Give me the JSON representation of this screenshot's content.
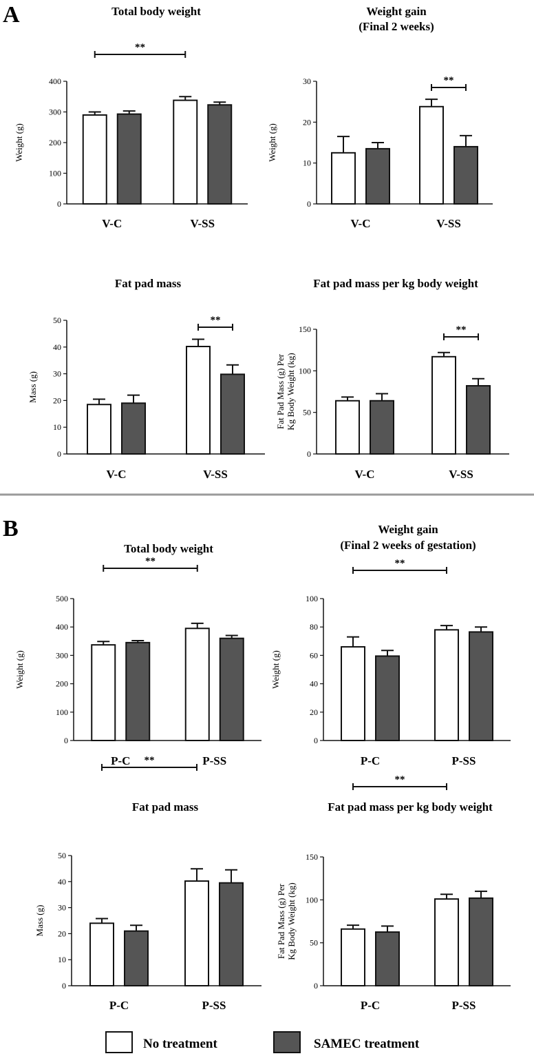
{
  "panels": {
    "a": "A",
    "b": "B"
  },
  "colors": {
    "no_treatment": "#ffffff",
    "samec": "#555555",
    "axis": "#111111",
    "divider": "#9a9a9a"
  },
  "legend": [
    {
      "label": "No treatment",
      "color": "#ffffff"
    },
    {
      "label": "SAMEC treatment",
      "color": "#555555"
    }
  ],
  "chart_data": [
    {
      "id": "a-tbw",
      "panel": "A",
      "type": "bar",
      "title": [
        "Total body weight"
      ],
      "ylabel": [
        "Weight (g)"
      ],
      "categories": [
        "V-C",
        "V-SS"
      ],
      "ylim": [
        0,
        400
      ],
      "yticks": [
        0,
        100,
        200,
        300,
        400
      ],
      "series": [
        {
          "name": "No treatment",
          "values": [
            290,
            338
          ],
          "errors": [
            10,
            12
          ]
        },
        {
          "name": "SAMEC treatment",
          "values": [
            293,
            323
          ],
          "errors": [
            10,
            9
          ]
        }
      ],
      "significance": [
        {
          "label": "**",
          "from": [
            0,
            0
          ],
          "to": [
            1,
            0
          ]
        }
      ]
    },
    {
      "id": "a-wg",
      "panel": "A",
      "type": "bar",
      "title": [
        "Weight gain",
        "(Final 2 weeks)"
      ],
      "ylabel": [
        "Weight (g)"
      ],
      "categories": [
        "V-C",
        "V-SS"
      ],
      "ylim": [
        0,
        30
      ],
      "yticks": [
        0,
        10,
        20,
        30
      ],
      "series": [
        {
          "name": "No treatment",
          "values": [
            12.5,
            23.8
          ],
          "errors": [
            4,
            1.8
          ]
        },
        {
          "name": "SAMEC treatment",
          "values": [
            13.5,
            14
          ],
          "errors": [
            1.5,
            2.7
          ]
        }
      ],
      "significance": [
        {
          "label": "**",
          "from": [
            1,
            0
          ],
          "to": [
            1,
            1
          ]
        }
      ]
    },
    {
      "id": "a-fpm",
      "panel": "A",
      "type": "bar",
      "title": [
        "Fat pad mass"
      ],
      "ylabel": [
        "Mass (g)"
      ],
      "categories": [
        "V-C",
        "V-SS"
      ],
      "ylim": [
        0,
        50
      ],
      "yticks": [
        0,
        10,
        20,
        30,
        40,
        50
      ],
      "series": [
        {
          "name": "No treatment",
          "values": [
            18.5,
            40.2
          ],
          "errors": [
            2,
            2.7
          ]
        },
        {
          "name": "SAMEC treatment",
          "values": [
            19,
            29.8
          ],
          "errors": [
            3,
            3.5
          ]
        }
      ],
      "significance": [
        {
          "label": "**",
          "from": [
            1,
            0
          ],
          "to": [
            1,
            1
          ]
        }
      ]
    },
    {
      "id": "a-fpk",
      "panel": "A",
      "type": "bar",
      "title": [
        "Fat pad mass per kg body weight"
      ],
      "ylabel": [
        "Fat Pad Mass (g) Per",
        "Kg Body Weight (kg)"
      ],
      "categories": [
        "V-C",
        "V-SS"
      ],
      "ylim": [
        0,
        150
      ],
      "yticks": [
        0,
        50,
        100,
        150
      ],
      "series": [
        {
          "name": "No treatment",
          "values": [
            64,
            117
          ],
          "errors": [
            4.5,
            5
          ]
        },
        {
          "name": "SAMEC treatment",
          "values": [
            64,
            82
          ],
          "errors": [
            8.5,
            8.5
          ]
        }
      ],
      "significance": [
        {
          "label": "**",
          "from": [
            1,
            0
          ],
          "to": [
            1,
            1
          ]
        }
      ]
    },
    {
      "id": "b-tbw",
      "panel": "B",
      "type": "bar",
      "title": [
        "Total body weight"
      ],
      "ylabel": [
        "Weight (g)"
      ],
      "categories": [
        "P-C",
        "P-SS"
      ],
      "ylim": [
        0,
        500
      ],
      "yticks": [
        0,
        100,
        200,
        300,
        400,
        500
      ],
      "series": [
        {
          "name": "No treatment",
          "values": [
            337,
            395
          ],
          "errors": [
            12,
            18
          ]
        },
        {
          "name": "SAMEC treatment",
          "values": [
            345,
            360
          ],
          "errors": [
            7,
            10
          ]
        }
      ],
      "significance": [
        {
          "label": "**",
          "from": [
            0,
            0
          ],
          "to": [
            1,
            0
          ]
        }
      ]
    },
    {
      "id": "b-wg",
      "panel": "B",
      "type": "bar",
      "title": [
        "Weight gain",
        "(Final 2 weeks of gestation)"
      ],
      "ylabel": [
        "Weight (g)"
      ],
      "categories": [
        "P-C",
        "P-SS"
      ],
      "ylim": [
        0,
        100
      ],
      "yticks": [
        0,
        20,
        40,
        60,
        80,
        100
      ],
      "series": [
        {
          "name": "No treatment",
          "values": [
            66,
            78
          ],
          "errors": [
            7,
            3
          ]
        },
        {
          "name": "SAMEC treatment",
          "values": [
            59.5,
            76.5
          ],
          "errors": [
            4,
            3.5
          ]
        }
      ],
      "significance": [
        {
          "label": "**",
          "from": [
            0,
            0
          ],
          "to": [
            1,
            0
          ]
        }
      ]
    },
    {
      "id": "b-fpm",
      "panel": "B",
      "type": "bar",
      "title": [
        "Fat pad mass"
      ],
      "ylabel": [
        "Mass (g)"
      ],
      "categories": [
        "P-C",
        "P-SS"
      ],
      "ylim": [
        0,
        50
      ],
      "yticks": [
        0,
        10,
        20,
        30,
        40,
        50
      ],
      "series": [
        {
          "name": "No treatment",
          "values": [
            24,
            40.2
          ],
          "errors": [
            1.8,
            4.7
          ]
        },
        {
          "name": "SAMEC treatment",
          "values": [
            21,
            39.5
          ],
          "errors": [
            2.2,
            5
          ]
        }
      ],
      "significance": [
        {
          "label": "**",
          "from": [
            0,
            0
          ],
          "to": [
            1,
            0
          ]
        }
      ]
    },
    {
      "id": "b-fpk",
      "panel": "B",
      "type": "bar",
      "title": [
        "Fat pad mass per kg body weight"
      ],
      "ylabel": [
        "Fat Pad Mass (g) Per",
        "Kg Body Weight (kg)"
      ],
      "categories": [
        "P-C",
        "P-SS"
      ],
      "ylim": [
        0,
        150
      ],
      "yticks": [
        0,
        50,
        100,
        150
      ],
      "series": [
        {
          "name": "No treatment",
          "values": [
            66,
            101
          ],
          "errors": [
            4.5,
            5.5
          ]
        },
        {
          "name": "SAMEC treatment",
          "values": [
            62.5,
            102
          ],
          "errors": [
            7,
            8
          ]
        }
      ],
      "significance": [
        {
          "label": "**",
          "from": [
            0,
            0
          ],
          "to": [
            1,
            0
          ]
        }
      ]
    }
  ]
}
